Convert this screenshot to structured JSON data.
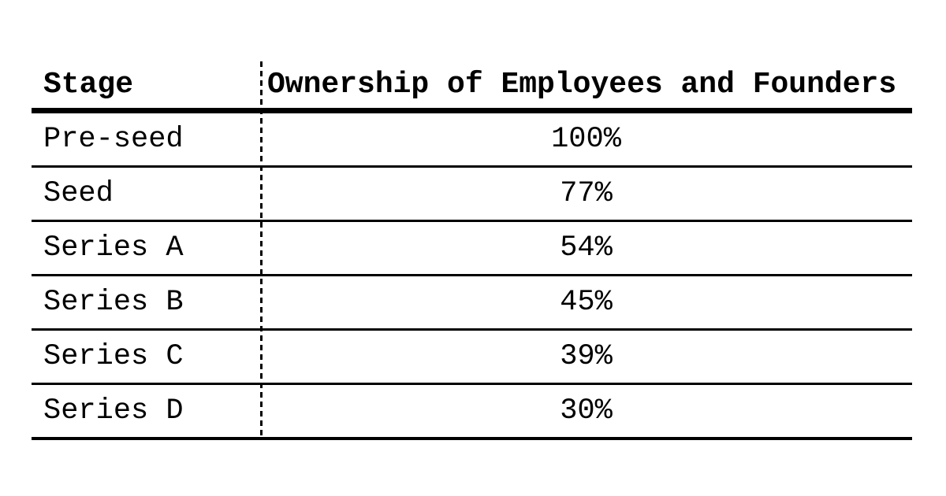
{
  "page": {
    "background_color": "#ffffff",
    "text_color": "#000000"
  },
  "table": {
    "header": {
      "stage": "Stage",
      "ownership": "Ownership of Employees and Founders"
    }
  },
  "chart_data": {
    "type": "table",
    "columns": [
      "Stage",
      "Ownership of Employees and Founders"
    ],
    "rows": [
      {
        "stage": "Pre-seed",
        "ownership": "100%"
      },
      {
        "stage": "Seed",
        "ownership": "77%"
      },
      {
        "stage": "Series A",
        "ownership": "54%"
      },
      {
        "stage": "Series B",
        "ownership": "45%"
      },
      {
        "stage": "Series C",
        "ownership": "39%"
      },
      {
        "stage": "Series D",
        "ownership": "30%"
      }
    ],
    "ownership_values_numeric_percent": [
      100,
      77,
      54,
      45,
      39,
      30
    ],
    "layout": {
      "column_divider_style": "vertical-dashed-line",
      "header_rule": "thick-solid",
      "row_rules": "thin-solid",
      "value_alignment": "center",
      "stage_alignment": "left"
    }
  }
}
